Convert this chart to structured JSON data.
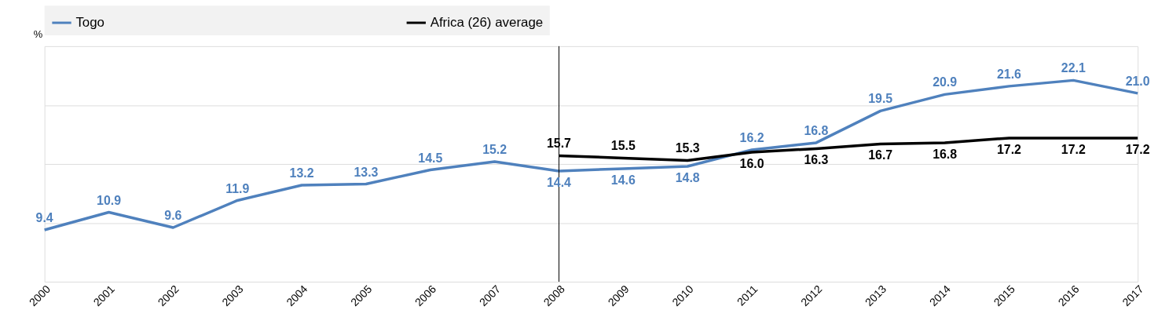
{
  "chart_data": {
    "type": "line",
    "ylabel": "%",
    "categories": [
      "2000",
      "2001",
      "2002",
      "2003",
      "2004",
      "2005",
      "2006",
      "2007",
      "2008",
      "2009",
      "2010",
      "2011",
      "2012",
      "2013",
      "2014",
      "2015",
      "2016",
      "2017"
    ],
    "series": [
      {
        "name": "Togo",
        "color": "#4f81bd",
        "values": [
          9.4,
          10.9,
          9.6,
          11.9,
          13.2,
          13.3,
          14.5,
          15.2,
          14.4,
          14.6,
          14.8,
          16.2,
          16.8,
          19.5,
          20.9,
          21.6,
          22.1,
          21.0
        ],
        "value_labels": [
          "9.4",
          "10.9",
          "9.6",
          "11.9",
          "13.2",
          "13.3",
          "14.5",
          "15.2",
          "14.4",
          "14.6",
          "14.8",
          "16.2",
          "16.8",
          "19.5",
          "20.9",
          "21.6",
          "22.1",
          "21.0"
        ]
      },
      {
        "name": "Africa (26) average",
        "color": "#000000",
        "values": [
          null,
          null,
          null,
          null,
          null,
          null,
          null,
          null,
          15.7,
          15.5,
          15.3,
          16.0,
          16.3,
          16.7,
          16.8,
          17.2,
          17.2,
          17.2
        ],
        "value_labels": [
          null,
          null,
          null,
          null,
          null,
          null,
          null,
          null,
          "15.7",
          "15.5",
          "15.3",
          "16.0",
          "16.3",
          "16.7",
          "16.8",
          "17.2",
          "17.2",
          "17.2"
        ]
      }
    ],
    "ylim": [
      5,
      25
    ],
    "yticks": [
      {
        "value": 10,
        "label": null
      },
      {
        "value": 15,
        "label": null
      },
      {
        "value": 20,
        "label": null
      }
    ],
    "grid": "y",
    "tick_labels": "x",
    "legend": "top",
    "marker": "none",
    "line_style": "solid",
    "ref_lines": [
      {
        "axis": "x",
        "value": "2008",
        "color": "#000000"
      }
    ]
  }
}
